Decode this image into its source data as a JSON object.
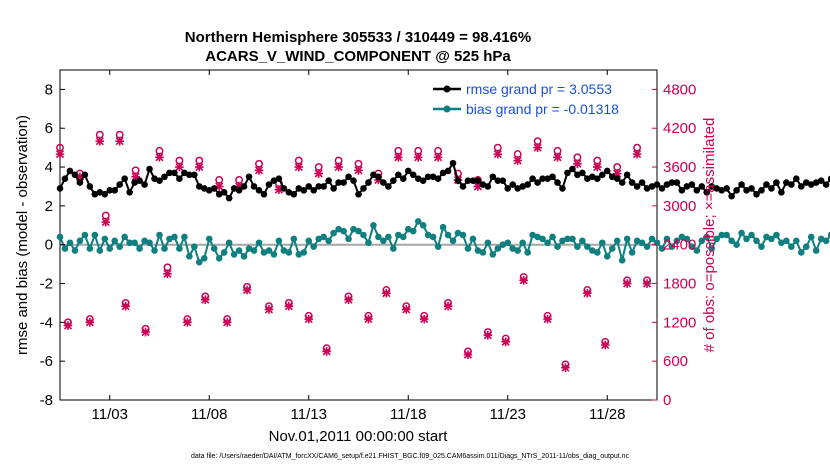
{
  "chart_data": {
    "type": "line",
    "title": "Northern Hemisphere 305533 / 310449 = 98.416%",
    "subtitle": "ACARS_V_WIND_COMPONENT @ 525 hPa",
    "xlabel": "Nov.01,2011 00:00:00 start",
    "ylabel": "rmse and bias (model - observation)",
    "ylabel_right": "# of obs: o=possible; ×=assimilated",
    "footer": "data file: /Users/raeder/DAI/ATM_forcXX/CAM6_setup/f.e21.FHIST_BGC.f09_025.CAM6assim.011/Diags_NTrS_2011-11/obs_diag_output.nc",
    "xlim": [
      0,
      30
    ],
    "ylim": [
      -8,
      9
    ],
    "ylim_right": [
      0,
      5100
    ],
    "x_ticks": [
      2.5,
      7.5,
      12.5,
      17.5,
      22.5,
      27.5
    ],
    "x_tick_labels": [
      "11/03",
      "11/08",
      "11/13",
      "11/18",
      "11/23",
      "11/28"
    ],
    "y_ticks": [
      -8,
      -6,
      -4,
      -2,
      0,
      2,
      4,
      6,
      8
    ],
    "y_tick_labels": [
      "-8",
      "-6",
      "-4",
      "-2",
      "0",
      "2",
      "4",
      "6",
      "8"
    ],
    "y_ticks_right": [
      0,
      600,
      1200,
      1800,
      2400,
      3000,
      3600,
      4200,
      4800
    ],
    "y_tick_labels_right": [
      "0",
      "600",
      "1200",
      "1800",
      "2400",
      "3000",
      "3600",
      "4200",
      "4800"
    ],
    "legend": [
      "rmse grand pr = 3.0553",
      "bias grand pr = -0.01318"
    ],
    "legend_position": "top-right",
    "colors": {
      "rmse": "#000000",
      "bias": "#0f7f7f",
      "obs": "#cc0055",
      "zero_line": "#a6a6a6"
    },
    "x_step": 0.25,
    "series": [
      {
        "name": "rmse",
        "values": [
          2.9,
          3.4,
          3.8,
          3.6,
          3.2,
          3.6,
          3.0,
          2.6,
          2.7,
          2.6,
          2.8,
          2.8,
          3.1,
          3.4,
          2.7,
          3.2,
          3.3,
          3.1,
          3.9,
          3.4,
          3.3,
          3.5,
          3.7,
          3.7,
          3.4,
          3.7,
          3.6,
          3.6,
          3.0,
          2.9,
          2.8,
          2.9,
          2.6,
          2.7,
          2.4,
          2.9,
          2.8,
          3.0,
          3.5,
          3.0,
          2.8,
          2.6,
          3.1,
          3.3,
          3.4,
          2.9,
          2.7,
          2.6,
          2.9,
          2.8,
          3.0,
          2.8,
          3.0,
          3.0,
          3.3,
          2.9,
          3.2,
          3.2,
          3.5,
          3.3,
          2.6,
          2.9,
          3.2,
          3.6,
          3.5,
          3.2,
          3.0,
          3.3,
          3.6,
          3.4,
          3.8,
          3.6,
          3.4,
          3.3,
          3.5,
          3.5,
          3.4,
          3.7,
          3.8,
          4.2,
          3.3,
          3.0,
          3.3,
          3.3,
          3.3,
          3.1,
          3.0,
          3.5,
          3.3,
          3.3,
          2.9,
          3.1,
          2.9,
          3.0,
          3.1,
          3.4,
          3.2,
          3.4,
          3.4,
          3.5,
          3.2,
          2.9,
          3.7,
          3.9,
          3.6,
          3.7,
          3.4,
          3.5,
          3.4,
          3.6,
          3.8,
          3.5,
          3.4,
          3.2,
          3.6,
          3.2,
          3.0,
          3.2,
          2.9,
          3.0,
          3.1,
          2.9,
          3.1,
          3.2,
          3.2,
          2.8,
          3.0,
          3.1,
          2.8,
          3.0,
          2.7,
          3.0,
          2.9,
          2.8,
          2.9,
          2.5,
          2.8,
          3.1,
          2.8,
          2.9,
          2.6,
          2.8,
          3.1,
          2.9,
          3.2,
          2.7,
          3.2,
          3.1,
          3.4,
          3.0,
          3.2,
          3.1,
          3.2,
          3.3,
          3.1,
          3.4,
          3.2,
          3.3,
          3.1,
          3.2,
          3.3,
          3.1,
          3.3,
          3.0,
          3.2,
          3.1,
          3.2,
          3.4,
          3.3,
          3.2,
          3.1,
          3.3,
          3.2,
          3.1,
          3.2,
          3.3,
          2.9,
          3.0,
          3.3,
          3.1,
          3.2,
          2.8,
          3.2,
          3.2,
          3.0,
          3.3,
          3.6,
          3.3,
          3.0,
          3.5,
          3.7,
          3.4,
          3.3,
          3.8,
          3.4,
          3.6,
          3.2,
          3.5,
          3.6,
          3.1,
          3.4,
          3.3,
          3.2,
          3.5,
          3.4,
          3.4,
          3.2,
          3.5
        ]
      },
      {
        "name": "bias",
        "values": [
          0.4,
          -0.2,
          0.1,
          -0.3,
          0.2,
          0.5,
          -0.2,
          0.5,
          -0.3,
          0.3,
          -0.2,
          0.2,
          -0.1,
          0.4,
          0.1,
          0.1,
          -0.2,
          0.2,
          0.1,
          -0.3,
          0.5,
          -0.2,
          0.3,
          0.4,
          -0.2,
          0.4,
          -0.6,
          -0.1,
          -0.9,
          -0.7,
          0.3,
          -0.2,
          -0.7,
          -0.4,
          0.1,
          -0.5,
          -0.3,
          -0.6,
          -0.2,
          -0.3,
          0.1,
          -0.4,
          -0.3,
          -0.5,
          0.2,
          -0.3,
          -0.4,
          0.3,
          -0.5,
          -0.4,
          0.2,
          -0.1,
          0.3,
          0.4,
          0.2,
          0.6,
          0.8,
          0.7,
          0.3,
          0.8,
          0.7,
          0.5,
          0.1,
          1.0,
          0.4,
          0.2,
          0.4,
          -0.2,
          0.5,
          0.4,
          0.8,
          0.7,
          1.2,
          1.0,
          0.5,
          0.4,
          -0.1,
          0.9,
          0.5,
          0.2,
          0.6,
          0.5,
          -0.2,
          0.3,
          -0.3,
          -0.4,
          0.1,
          -0.5,
          -0.2,
          0.0,
          0.1,
          -0.2,
          -0.3,
          0.1,
          -0.4,
          0.5,
          0.4,
          0.3,
          0.1,
          0.4,
          -0.1,
          0.2,
          0.3,
          0.3,
          -0.1,
          0.2,
          -0.1,
          -0.3,
          -0.4,
          0.1,
          -0.6,
          -0.2,
          0.2,
          -0.8,
          0.3,
          -0.4,
          0.2,
          0.1,
          -0.1,
          0.3,
          0.1,
          -0.2,
          0.3,
          -0.1,
          0.2,
          0.4,
          0.3,
          -0.1,
          -0.3,
          0.2,
          0.4,
          -0.2,
          0.3,
          0.5,
          0.5,
          0.2,
          0.0,
          0.6,
          0.3,
          0.5,
          0.2,
          -0.1,
          0.4,
          0.3,
          0.5,
          0.1,
          0.2,
          -0.1,
          0.2,
          -0.4,
          -0.1,
          0.4,
          -0.3,
          0.3,
          0.2,
          0.5,
          0.7,
          0.5,
          -0.3,
          0.1,
          -0.4,
          0.2,
          0.4,
          -0.2,
          0.5,
          0.1,
          -0.2,
          0.3,
          -0.4,
          0.4,
          0.0,
          0.3,
          0.2,
          0.6,
          0.5,
          0.7,
          0.3,
          0.4,
          0.5,
          0.5,
          0.6,
          0.7,
          0.4,
          0.9,
          0.3,
          0.2,
          0.5,
          -0.1,
          0.4,
          0.7,
          0.5,
          0.2,
          0.5,
          0.3,
          0.2,
          -0.2,
          0.1,
          0.5,
          -0.4,
          0.0,
          -0.3,
          -0.4,
          -0.5,
          -0.5,
          -0.5,
          -0.3,
          0.1,
          -0.1,
          0.7
        ]
      },
      {
        "name": "obs_possible",
        "x": [
          0.0,
          0.4,
          1.0,
          1.5,
          2.0,
          2.3,
          3.0,
          3.3,
          3.8,
          4.3,
          5.0,
          5.4,
          6.0,
          6.4,
          7.0,
          7.3,
          8.0,
          8.4,
          9.0,
          9.4,
          10.0,
          10.5,
          11.0,
          11.5,
          12.0,
          12.5,
          13.0,
          13.4,
          14.0,
          14.5,
          15.0,
          15.5,
          16.0,
          16.4,
          17.0,
          17.4,
          18.0,
          18.3,
          19.0,
          19.5,
          20.0,
          20.5,
          21.0,
          21.5,
          22.0,
          22.4,
          23.0,
          23.3,
          24.0,
          24.5,
          25.0,
          25.4,
          26.0,
          26.5,
          27.0,
          27.4,
          28.0,
          28.5,
          29.0,
          29.5
        ],
        "values": [
          3900,
          1200,
          3500,
          1250,
          4100,
          2850,
          4100,
          1500,
          3550,
          1100,
          3850,
          2050,
          3700,
          1250,
          3700,
          1600,
          3400,
          1250,
          3400,
          1750,
          3650,
          1450,
          3350,
          1500,
          3700,
          1300,
          3600,
          800,
          3700,
          1600,
          3650,
          1300,
          3500,
          1700,
          3850,
          1450,
          3850,
          1300,
          3850,
          1500,
          3500,
          750,
          3400,
          1050,
          3900,
          950,
          3800,
          1900,
          4000,
          1300,
          3850,
          550,
          3750,
          1700,
          3700,
          900,
          3600,
          1850,
          3900,
          1850
        ]
      },
      {
        "name": "obs_assimilated",
        "x": [
          0.0,
          0.4,
          1.0,
          1.5,
          2.0,
          2.3,
          3.0,
          3.3,
          3.8,
          4.3,
          5.0,
          5.4,
          6.0,
          6.4,
          7.0,
          7.3,
          8.0,
          8.4,
          9.0,
          9.4,
          10.0,
          10.5,
          11.0,
          11.5,
          12.0,
          12.5,
          13.0,
          13.4,
          14.0,
          14.5,
          15.0,
          15.5,
          16.0,
          16.4,
          17.0,
          17.4,
          18.0,
          18.3,
          19.0,
          19.5,
          20.0,
          20.5,
          21.0,
          21.5,
          22.0,
          22.4,
          23.0,
          23.3,
          24.0,
          24.5,
          25.0,
          25.4,
          26.0,
          26.5,
          27.0,
          27.4,
          28.0,
          28.5,
          29.0,
          29.5
        ],
        "values": [
          3800,
          1150,
          3450,
          1200,
          4000,
          2750,
          4000,
          1450,
          3450,
          1050,
          3750,
          1950,
          3600,
          1200,
          3600,
          1550,
          3300,
          1200,
          3300,
          1700,
          3550,
          1400,
          3250,
          1450,
          3600,
          1250,
          3500,
          750,
          3600,
          1550,
          3550,
          1250,
          3400,
          1650,
          3750,
          1400,
          3750,
          1250,
          3750,
          1450,
          3400,
          700,
          3300,
          1000,
          3800,
          900,
          3700,
          1850,
          3900,
          1250,
          3750,
          500,
          3650,
          1650,
          3600,
          850,
          3500,
          1800,
          3800,
          1800
        ]
      }
    ]
  }
}
